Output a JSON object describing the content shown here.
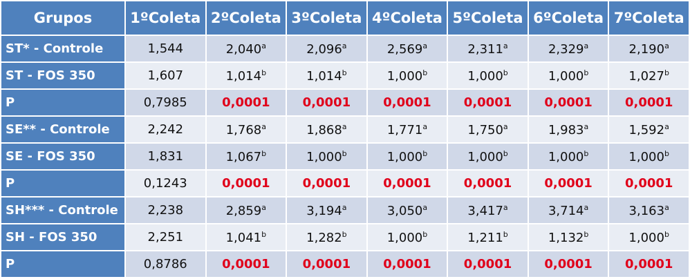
{
  "table": {
    "header": [
      "Grupos",
      "1ºColeta",
      "2ºColeta",
      "3ºColeta",
      "4ºColeta",
      "5ºColeta",
      "6ºColeta",
      "7ºColeta"
    ],
    "rows": [
      {
        "group": "ST* - Controle",
        "cells": [
          {
            "text": "1,544"
          },
          {
            "text": "2,040",
            "sup": "a"
          },
          {
            "text": "2,096",
            "sup": "a"
          },
          {
            "text": "2,569",
            "sup": "a"
          },
          {
            "text": "2,311",
            "sup": "a"
          },
          {
            "text": "2,329",
            "sup": "a"
          },
          {
            "text": "2,190",
            "sup": "a"
          }
        ]
      },
      {
        "group": "ST - FOS 350",
        "cells": [
          {
            "text": "1,607"
          },
          {
            "text": "1,014",
            "sup": "b"
          },
          {
            "text": "1,014",
            "sup": "b"
          },
          {
            "text": "1,000",
            "sup": "b"
          },
          {
            "text": "1,000",
            "sup": "b"
          },
          {
            "text": "1,000",
            "sup": "b"
          },
          {
            "text": "1,027",
            "sup": "b"
          }
        ]
      },
      {
        "group": "P",
        "cells": [
          {
            "text": "0,7985"
          },
          {
            "text": "0,0001",
            "highlight": true
          },
          {
            "text": "0,0001",
            "highlight": true
          },
          {
            "text": "0,0001",
            "highlight": true
          },
          {
            "text": "0,0001",
            "highlight": true
          },
          {
            "text": "0,0001",
            "highlight": true
          },
          {
            "text": "0,0001",
            "highlight": true
          }
        ]
      },
      {
        "group": "SE** - Controle",
        "cells": [
          {
            "text": "2,242"
          },
          {
            "text": "1,768",
            "sup": "a"
          },
          {
            "text": "1,868",
            "sup": "a"
          },
          {
            "text": "1,771",
            "sup": "a"
          },
          {
            "text": "1,750",
            "sup": "a"
          },
          {
            "text": "1,983",
            "sup": "a"
          },
          {
            "text": "1,592",
            "sup": "a"
          }
        ]
      },
      {
        "group": "SE - FOS 350",
        "cells": [
          {
            "text": "1,831"
          },
          {
            "text": "1,067",
            "sup": "b"
          },
          {
            "text": "1,000",
            "sup": "b"
          },
          {
            "text": "1,000",
            "sup": "b"
          },
          {
            "text": "1,000",
            "sup": "b"
          },
          {
            "text": "1,000",
            "sup": "b"
          },
          {
            "text": "1,000",
            "sup": "b"
          }
        ]
      },
      {
        "group": "P",
        "cells": [
          {
            "text": "0,1243"
          },
          {
            "text": "0,0001",
            "highlight": true
          },
          {
            "text": "0,0001",
            "highlight": true
          },
          {
            "text": "0,0001",
            "highlight": true
          },
          {
            "text": "0,0001",
            "highlight": true
          },
          {
            "text": "0,0001",
            "highlight": true
          },
          {
            "text": "0,0001",
            "highlight": true
          }
        ]
      },
      {
        "group": "SH*** - Controle",
        "cells": [
          {
            "text": "2,238"
          },
          {
            "text": "2,859",
            "sup": "a"
          },
          {
            "text": "3,194",
            "sup": "a"
          },
          {
            "text": "3,050",
            "sup": "a"
          },
          {
            "text": "3,417",
            "sup": "a"
          },
          {
            "text": "3,714",
            "sup": "a"
          },
          {
            "text": "3,163",
            "sup": "a"
          }
        ]
      },
      {
        "group": "SH - FOS 350",
        "cells": [
          {
            "text": "2,251"
          },
          {
            "text": "1,041",
            "sup": "b"
          },
          {
            "text": "1,282",
            "sup": "b"
          },
          {
            "text": "1,000",
            "sup": "b"
          },
          {
            "text": "1,211",
            "sup": "b"
          },
          {
            "text": "1,132",
            "sup": "b"
          },
          {
            "text": "1,000",
            "sup": "b"
          }
        ]
      },
      {
        "group": "P",
        "cells": [
          {
            "text": "0,8786"
          },
          {
            "text": "0,0001",
            "highlight": true
          },
          {
            "text": "0,0001",
            "highlight": true
          },
          {
            "text": "0,0001",
            "highlight": true
          },
          {
            "text": "0,0001",
            "highlight": true
          },
          {
            "text": "0,0001",
            "highlight": true
          },
          {
            "text": "0,0001",
            "highlight": true
          }
        ]
      }
    ]
  }
}
